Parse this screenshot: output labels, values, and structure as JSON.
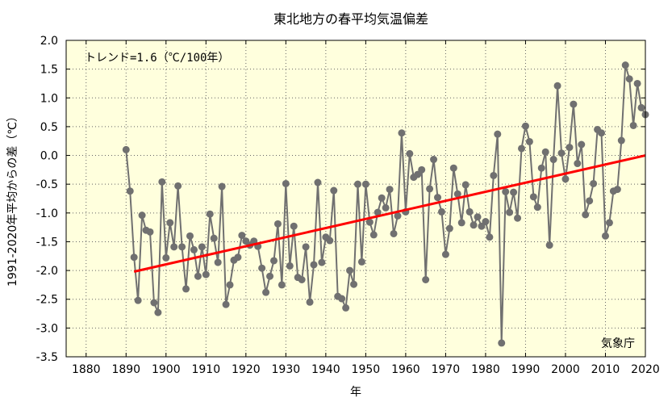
{
  "chart_data": {
    "type": "line",
    "title": "東北地方の春平均気温偏差",
    "xlabel": "年",
    "ylabel": "1991-2020年平均からの差（℃）",
    "xlim": [
      1875,
      2020
    ],
    "ylim": [
      -3.5,
      2.0
    ],
    "xticks": [
      1880,
      1890,
      1900,
      1910,
      1920,
      1930,
      1940,
      1950,
      1960,
      1970,
      1980,
      1990,
      2000,
      2010,
      2020
    ],
    "yticks": [
      2.0,
      1.5,
      1.0,
      0.5,
      0.0,
      -0.5,
      -1.0,
      -1.5,
      -2.0,
      -2.5,
      -3.0,
      -3.5
    ],
    "ytick_labels": [
      "2.0",
      "1.5",
      "1.0",
      "0.5",
      "0.0",
      "-0.5",
      "-1.0",
      "-1.5",
      "-2.0",
      "-2.5",
      "-3.0",
      "-3.5"
    ],
    "grid": true,
    "annotation": "トレンド=1.6（℃/100年）",
    "credit": "気象庁",
    "colors": {
      "series": "#707070",
      "trend": "#ff0000",
      "background": "#ffffdd",
      "grid": "#666666"
    },
    "series": [
      {
        "x": [
          1890,
          1891,
          1892,
          1893,
          1894,
          1895,
          1896,
          1897,
          1898,
          1899,
          1900,
          1901,
          1902,
          1903,
          1904,
          1905,
          1906,
          1907,
          1908,
          1909,
          1910,
          1911,
          1912,
          1913,
          1914,
          1915,
          1916,
          1917,
          1918,
          1919,
          1920,
          1921,
          1922,
          1923,
          1924,
          1925,
          1926,
          1927,
          1928,
          1929,
          1930,
          1931,
          1932,
          1933,
          1934,
          1935,
          1936,
          1937,
          1938,
          1939,
          1940,
          1941,
          1942,
          1943,
          1944,
          1945,
          1946,
          1947,
          1948,
          1949,
          1950,
          1951,
          1952,
          1953,
          1954,
          1955,
          1956,
          1957,
          1958,
          1959,
          1960,
          1961,
          1962,
          1963,
          1964,
          1965,
          1966,
          1967,
          1968,
          1969,
          1970,
          1971,
          1972,
          1973,
          1974,
          1975,
          1976,
          1977,
          1978,
          1979,
          1980,
          1981,
          1982,
          1983,
          1984,
          1985,
          1986,
          1987,
          1988,
          1989,
          1990,
          1991,
          1992,
          1993,
          1994,
          1995,
          1996,
          1997,
          1998,
          1999,
          2000,
          2001,
          2002,
          2003,
          2004,
          2005,
          2006,
          2007,
          2008,
          2009,
          2010,
          2011,
          2012,
          2013,
          2014,
          2015,
          2016,
          2017,
          2018,
          2019,
          2020
        ],
        "values": [
          0.1,
          -0.62,
          -1.77,
          -2.52,
          -1.04,
          -1.3,
          -1.33,
          -2.56,
          -2.73,
          -0.46,
          -1.78,
          -1.17,
          -1.59,
          -0.53,
          -1.59,
          -2.32,
          -1.4,
          -1.64,
          -2.1,
          -1.59,
          -2.07,
          -1.02,
          -1.44,
          -1.86,
          -0.54,
          -2.59,
          -2.25,
          -1.82,
          -1.77,
          -1.39,
          -1.49,
          -1.56,
          -1.49,
          -1.58,
          -1.96,
          -2.38,
          -2.1,
          -1.83,
          -1.19,
          -2.25,
          -0.49,
          -1.92,
          -1.23,
          -2.12,
          -2.16,
          -1.59,
          -2.55,
          -1.9,
          -0.47,
          -1.86,
          -1.42,
          -1.48,
          -0.61,
          -2.45,
          -2.49,
          -2.65,
          -2.0,
          -2.24,
          -0.5,
          -1.85,
          -0.5,
          -1.16,
          -1.38,
          -0.99,
          -0.74,
          -0.91,
          -0.59,
          -1.36,
          -1.05,
          0.39,
          -0.98,
          0.03,
          -0.38,
          -0.33,
          -0.25,
          -2.16,
          -0.58,
          -0.07,
          -0.73,
          -0.98,
          -1.72,
          -1.27,
          -0.22,
          -0.67,
          -1.17,
          -0.51,
          -0.98,
          -1.21,
          -1.07,
          -1.23,
          -1.15,
          -1.42,
          -0.35,
          0.37,
          -3.26,
          -0.63,
          -0.99,
          -0.64,
          -1.09,
          0.12,
          0.51,
          0.24,
          -0.72,
          -0.9,
          -0.22,
          0.06,
          -1.56,
          -0.07,
          1.21,
          0.04,
          -0.41,
          0.14,
          0.89,
          -0.14,
          0.19,
          -1.03,
          -0.79,
          -0.49,
          0.45,
          0.39,
          -1.4,
          -1.17,
          -0.62,
          -0.59,
          0.26,
          1.57,
          1.33,
          0.52,
          1.25,
          0.83,
          0.71
        ]
      }
    ],
    "trend": {
      "x": [
        1892,
        2020
      ],
      "values": [
        -2.02,
        0.0
      ]
    }
  }
}
